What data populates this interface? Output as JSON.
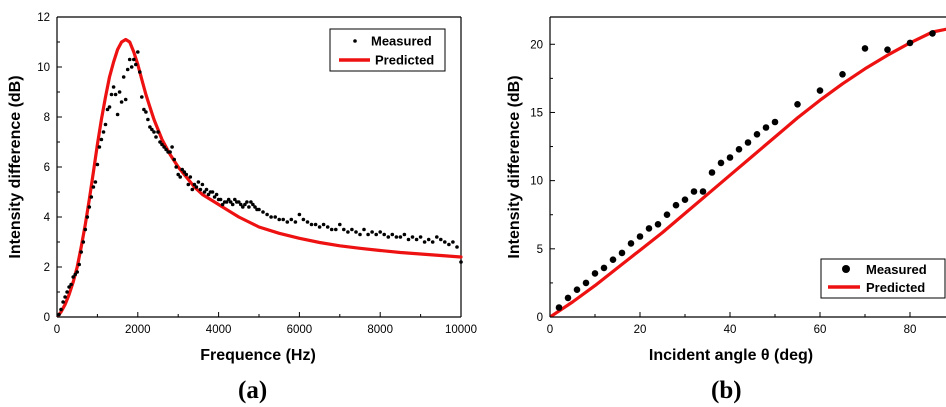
{
  "chart_data": [
    {
      "type": "scatter",
      "panel_label": "(a)",
      "xlabel": "Frequence (Hz)",
      "ylabel": "Intensity difference (dB)",
      "xlim": [
        0,
        10000
      ],
      "ylim": [
        0,
        12
      ],
      "xticks": [
        0,
        2000,
        4000,
        6000,
        8000,
        10000
      ],
      "yticks": [
        0,
        2,
        4,
        6,
        8,
        10,
        12
      ],
      "legend_position": "top-right",
      "series": [
        {
          "name": "Measured",
          "style": "points",
          "color": "#000000",
          "x": [
            50,
            100,
            150,
            200,
            250,
            300,
            350,
            400,
            450,
            500,
            550,
            600,
            650,
            700,
            750,
            800,
            850,
            900,
            950,
            1000,
            1050,
            1100,
            1150,
            1200,
            1250,
            1300,
            1350,
            1400,
            1450,
            1500,
            1550,
            1600,
            1650,
            1700,
            1750,
            1800,
            1850,
            1900,
            1950,
            2000,
            2050,
            2100,
            2150,
            2200,
            2250,
            2300,
            2350,
            2400,
            2450,
            2500,
            2550,
            2600,
            2650,
            2700,
            2750,
            2800,
            2850,
            2900,
            2950,
            3000,
            3050,
            3100,
            3150,
            3200,
            3250,
            3300,
            3350,
            3400,
            3450,
            3500,
            3550,
            3600,
            3650,
            3700,
            3750,
            3800,
            3850,
            3900,
            3950,
            4000,
            4050,
            4100,
            4150,
            4200,
            4250,
            4300,
            4350,
            4400,
            4450,
            4500,
            4550,
            4600,
            4650,
            4700,
            4750,
            4800,
            4850,
            4900,
            4950,
            5000,
            5100,
            5200,
            5300,
            5400,
            5500,
            5600,
            5700,
            5800,
            5900,
            6000,
            6100,
            6200,
            6300,
            6400,
            6500,
            6600,
            6700,
            6800,
            6900,
            7000,
            7100,
            7200,
            7300,
            7400,
            7500,
            7600,
            7700,
            7800,
            7900,
            8000,
            8100,
            8200,
            8300,
            8400,
            8500,
            8600,
            8700,
            8800,
            8900,
            9000,
            9100,
            9200,
            9300,
            9400,
            9500,
            9600,
            9700,
            9800,
            9900,
            10000
          ],
          "y": [
            0.1,
            0.3,
            0.6,
            0.8,
            1.0,
            1.2,
            1.3,
            1.6,
            1.7,
            1.8,
            2.1,
            2.6,
            3.0,
            3.5,
            4.0,
            4.4,
            4.8,
            5.2,
            5.4,
            6.1,
            6.8,
            7.1,
            7.4,
            7.7,
            8.3,
            8.4,
            8.9,
            9.2,
            8.9,
            8.1,
            9.0,
            8.6,
            9.6,
            8.7,
            9.9,
            10.3,
            10.0,
            10.3,
            10.1,
            10.6,
            9.8,
            8.8,
            8.3,
            8.2,
            7.9,
            7.6,
            7.5,
            7.4,
            7.2,
            7.4,
            7.0,
            6.9,
            6.8,
            6.7,
            6.6,
            6.6,
            6.8,
            6.3,
            6.0,
            5.7,
            5.6,
            5.9,
            5.8,
            5.7,
            5.3,
            5.6,
            5.1,
            5.3,
            5.2,
            5.4,
            5.1,
            5.3,
            5.0,
            5.1,
            4.9,
            5.0,
            5.0,
            4.8,
            4.9,
            4.7,
            4.7,
            4.5,
            4.6,
            4.6,
            4.7,
            4.6,
            4.5,
            4.7,
            4.6,
            4.6,
            4.5,
            4.4,
            4.5,
            4.6,
            4.4,
            4.6,
            4.5,
            4.4,
            4.3,
            4.3,
            4.2,
            4.1,
            4.0,
            4.0,
            3.9,
            3.9,
            3.8,
            3.9,
            3.8,
            4.1,
            3.9,
            3.8,
            3.7,
            3.7,
            3.6,
            3.7,
            3.6,
            3.5,
            3.5,
            3.7,
            3.5,
            3.4,
            3.5,
            3.4,
            3.3,
            3.5,
            3.3,
            3.4,
            3.3,
            3.4,
            3.3,
            3.2,
            3.3,
            3.2,
            3.2,
            3.3,
            3.1,
            3.2,
            3.1,
            3.2,
            3.0,
            3.1,
            3.0,
            3.2,
            3.1,
            3.0,
            2.9,
            3.0,
            2.8,
            2.2
          ]
        },
        {
          "name": "Predicted",
          "style": "line",
          "color": "#ee1111",
          "x": [
            0,
            100,
            200,
            300,
            400,
            500,
            600,
            700,
            800,
            900,
            1000,
            1100,
            1200,
            1300,
            1400,
            1500,
            1600,
            1700,
            1800,
            1900,
            2000,
            2100,
            2200,
            2300,
            2400,
            2500,
            2600,
            2800,
            3000,
            3200,
            3400,
            3600,
            3800,
            4000,
            4250,
            4500,
            4750,
            5000,
            5500,
            6000,
            6500,
            7000,
            7500,
            8000,
            8500,
            9000,
            9500,
            10000
          ],
          "y": [
            0,
            0.2,
            0.5,
            0.9,
            1.4,
            2.0,
            2.8,
            3.7,
            4.7,
            5.8,
            6.9,
            7.9,
            8.8,
            9.6,
            10.2,
            10.7,
            11.0,
            11.1,
            11.0,
            10.6,
            10.1,
            9.5,
            8.9,
            8.4,
            7.9,
            7.5,
            7.1,
            6.5,
            6.0,
            5.6,
            5.2,
            4.9,
            4.7,
            4.5,
            4.25,
            4.0,
            3.8,
            3.6,
            3.35,
            3.15,
            2.98,
            2.85,
            2.75,
            2.66,
            2.58,
            2.52,
            2.46,
            2.4
          ]
        }
      ]
    },
    {
      "type": "scatter",
      "panel_label": "(b)",
      "xlabel": "Incident angle θ (deg)",
      "ylabel": "Intensity difference (dB)",
      "xlim": [
        0,
        88
      ],
      "ylim": [
        0,
        22
      ],
      "xticks": [
        0,
        20,
        40,
        60,
        80
      ],
      "yticks": [
        0,
        5,
        10,
        15,
        20
      ],
      "legend_position": "bottom-right",
      "series": [
        {
          "name": "Measured",
          "style": "points",
          "color": "#000000",
          "x": [
            2,
            4,
            6,
            8,
            10,
            12,
            14,
            16,
            18,
            20,
            22,
            24,
            26,
            28,
            30,
            32,
            34,
            36,
            38,
            40,
            42,
            44,
            46,
            48,
            50,
            55,
            60,
            65,
            70,
            75,
            80,
            85
          ],
          "y": [
            0.7,
            1.4,
            2.0,
            2.5,
            3.2,
            3.6,
            4.2,
            4.7,
            5.4,
            5.9,
            6.5,
            6.8,
            7.5,
            8.2,
            8.6,
            9.2,
            9.2,
            10.6,
            11.3,
            11.7,
            12.3,
            12.8,
            13.4,
            13.9,
            14.3,
            15.6,
            16.6,
            17.8,
            19.7,
            19.6,
            20.1,
            20.8
          ]
        },
        {
          "name": "Predicted",
          "style": "line",
          "color": "#ee1111",
          "x": [
            0,
            5,
            10,
            15,
            20,
            25,
            30,
            35,
            40,
            45,
            50,
            55,
            60,
            65,
            70,
            75,
            80,
            85,
            88
          ],
          "y": [
            0,
            1.1,
            2.3,
            3.6,
            4.9,
            6.2,
            7.6,
            9.0,
            10.4,
            11.8,
            13.2,
            14.6,
            15.9,
            17.1,
            18.2,
            19.2,
            20.1,
            20.9,
            21.1
          ]
        }
      ]
    }
  ]
}
